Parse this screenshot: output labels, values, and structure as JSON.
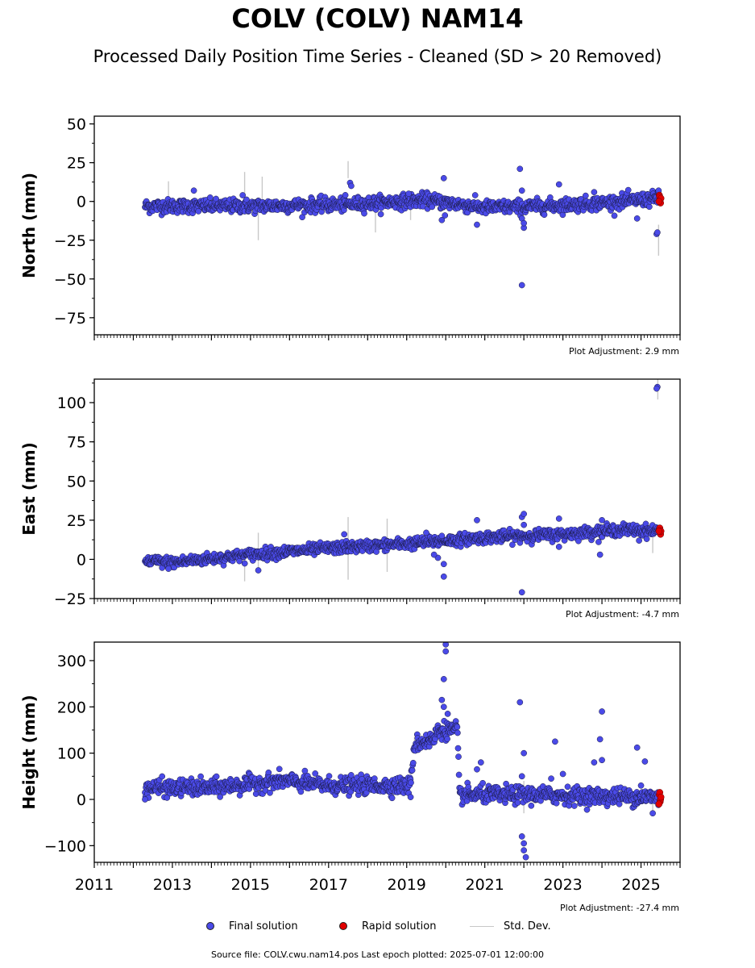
{
  "title": "COLV (COLV) NAM14",
  "subtitle": "Processed Daily Position Time Series - Cleaned (SD > 20 Removed)",
  "footer": "Source file: COLV.cwu.nam14.pos  Last epoch plotted: 2025-07-01 12:00:00",
  "legend": {
    "final": "Final solution",
    "rapid": "Rapid solution",
    "std": "Std. Dev."
  },
  "colors": {
    "final": "#4a4ae8",
    "rapid": "#e00000",
    "std": "#c8c8c8",
    "marker_edge": "#1a1a40"
  },
  "chart_data": [
    {
      "type": "scatter",
      "ylabel": "North (mm)",
      "adjustment": "Plot Adjustment: 2.9 mm",
      "xlim": [
        2011.0,
        2026.0
      ],
      "ylim": [
        -86,
        55
      ],
      "yticks": [
        50,
        25,
        0,
        -25,
        -50,
        -75
      ],
      "ytick_labels": [
        "50",
        "25",
        "0",
        "−25",
        "−50",
        "−75"
      ],
      "show_x_labels": false,
      "trend": [
        [
          2012.3,
          -3
        ],
        [
          2013.5,
          -3
        ],
        [
          2015.0,
          -3
        ],
        [
          2017.5,
          -2
        ],
        [
          2019.5,
          1
        ],
        [
          2021.0,
          -4
        ],
        [
          2022.5,
          -3
        ],
        [
          2024.0,
          -1
        ],
        [
          2025.45,
          2
        ]
      ],
      "noise": 2.2,
      "outliers": [
        [
          2013.55,
          7
        ],
        [
          2014.8,
          4
        ],
        [
          2017.55,
          12
        ],
        [
          2017.58,
          10
        ],
        [
          2019.05,
          5
        ],
        [
          2019.95,
          15
        ],
        [
          2019.9,
          -12
        ],
        [
          2019.98,
          -9
        ],
        [
          2020.8,
          -15
        ],
        [
          2021.9,
          21
        ],
        [
          2021.95,
          7
        ],
        [
          2021.95,
          -11
        ],
        [
          2022.0,
          -17
        ],
        [
          2022.0,
          -14
        ],
        [
          2021.95,
          -54
        ],
        [
          2022.9,
          11
        ],
        [
          2023.8,
          6
        ],
        [
          2024.9,
          -11
        ],
        [
          2025.4,
          -21
        ],
        [
          2025.42,
          -20
        ],
        [
          2025.45,
          7
        ]
      ],
      "errorbars": [
        [
          2012.9,
          -8,
          13
        ],
        [
          2014.85,
          1,
          19
        ],
        [
          2015.2,
          -25,
          -3
        ],
        [
          2015.3,
          0,
          16
        ],
        [
          2017.5,
          15,
          26
        ],
        [
          2018.2,
          -20,
          -5
        ],
        [
          2019.1,
          -12,
          0
        ],
        [
          2025.45,
          -35,
          -15
        ]
      ],
      "rapid": [
        [
          2025.47,
          4
        ],
        [
          2025.49,
          1
        ],
        [
          2025.5,
          -1
        ],
        [
          2025.48,
          3
        ],
        [
          2025.51,
          2
        ],
        [
          2025.46,
          0
        ]
      ]
    },
    {
      "type": "scatter",
      "ylabel": "East (mm)",
      "adjustment": "Plot Adjustment: -4.7 mm",
      "xlim": [
        2011.0,
        2026.0
      ],
      "ylim": [
        -25,
        115
      ],
      "yticks": [
        100,
        75,
        50,
        25,
        0,
        -25
      ],
      "ytick_labels": [
        "100",
        "75",
        "50",
        "25",
        "0",
        "−25"
      ],
      "show_x_labels": false,
      "trend": [
        [
          2012.3,
          -1
        ],
        [
          2013.0,
          -2
        ],
        [
          2015.0,
          3
        ],
        [
          2017.0,
          7
        ],
        [
          2019.0,
          10
        ],
        [
          2021.0,
          14
        ],
        [
          2023.0,
          16
        ],
        [
          2024.5,
          19
        ],
        [
          2025.45,
          18
        ]
      ],
      "noise": 1.8,
      "outliers": [
        [
          2012.9,
          -6
        ],
        [
          2015.2,
          -7
        ],
        [
          2017.4,
          16
        ],
        [
          2019.5,
          17
        ],
        [
          2019.9,
          15
        ],
        [
          2019.95,
          -3
        ],
        [
          2019.95,
          -11
        ],
        [
          2019.8,
          1
        ],
        [
          2019.7,
          3
        ],
        [
          2020.8,
          25
        ],
        [
          2021.95,
          27
        ],
        [
          2022.0,
          29
        ],
        [
          2022.0,
          22
        ],
        [
          2021.95,
          -21
        ],
        [
          2022.9,
          26
        ],
        [
          2022.9,
          8
        ],
        [
          2023.95,
          3
        ],
        [
          2024.0,
          25
        ],
        [
          2024.95,
          12
        ],
        [
          2025.42,
          110
        ],
        [
          2025.4,
          109
        ]
      ],
      "errorbars": [
        [
          2014.85,
          -14,
          6
        ],
        [
          2015.2,
          -5,
          17
        ],
        [
          2017.5,
          -13,
          27
        ],
        [
          2018.5,
          -8,
          26
        ],
        [
          2025.43,
          102,
          115
        ],
        [
          2025.3,
          4,
          16
        ]
      ],
      "rapid": [
        [
          2025.47,
          19
        ],
        [
          2025.49,
          17
        ],
        [
          2025.5,
          16
        ],
        [
          2025.48,
          20
        ],
        [
          2025.51,
          18
        ],
        [
          2025.46,
          18
        ]
      ]
    },
    {
      "type": "scatter",
      "ylabel": "Height (mm)",
      "adjustment": "Plot Adjustment: -27.4 mm",
      "xlim": [
        2011.0,
        2026.0
      ],
      "ylim": [
        -136,
        340
      ],
      "yticks": [
        300,
        200,
        100,
        0,
        -100
      ],
      "ytick_labels": [
        "300",
        "200",
        "100",
        "0",
        "−100"
      ],
      "show_x_labels": true,
      "xticks": [
        2011,
        2013,
        2015,
        2017,
        2019,
        2021,
        2023,
        2025
      ],
      "xtick_labels": [
        "2011",
        "2013",
        "2015",
        "2017",
        "2019",
        "2021",
        "2023",
        "2025"
      ],
      "trend": [
        [
          2012.3,
          25
        ],
        [
          2014.0,
          25
        ],
        [
          2015.8,
          40
        ],
        [
          2017.0,
          30
        ],
        [
          2019.1,
          30
        ],
        [
          2019.2,
          120
        ],
        [
          2019.7,
          130
        ],
        [
          2019.8,
          150
        ],
        [
          2020.3,
          150
        ],
        [
          2020.35,
          10
        ],
        [
          2022.0,
          10
        ],
        [
          2025.45,
          5
        ]
      ],
      "noise": 9,
      "outliers": [
        [
          2012.3,
          0
        ],
        [
          2019.1,
          5
        ],
        [
          2019.9,
          215
        ],
        [
          2019.95,
          260
        ],
        [
          2020.0,
          320
        ],
        [
          2020.0,
          335
        ],
        [
          2019.95,
          200
        ],
        [
          2020.05,
          185
        ],
        [
          2020.8,
          65
        ],
        [
          2020.9,
          80
        ],
        [
          2021.9,
          210
        ],
        [
          2021.95,
          50
        ],
        [
          2021.95,
          -80
        ],
        [
          2022.0,
          -95
        ],
        [
          2022.0,
          -110
        ],
        [
          2022.05,
          -125
        ],
        [
          2022.0,
          100
        ],
        [
          2022.7,
          45
        ],
        [
          2022.8,
          125
        ],
        [
          2023.0,
          55
        ],
        [
          2023.8,
          80
        ],
        [
          2023.95,
          130
        ],
        [
          2024.0,
          190
        ],
        [
          2024.0,
          85
        ],
        [
          2024.9,
          112
        ],
        [
          2025.0,
          30
        ],
        [
          2025.1,
          82
        ],
        [
          2025.3,
          -30
        ]
      ],
      "errorbars": [
        [
          2019.2,
          105,
          135
        ],
        [
          2022.0,
          -30,
          40
        ],
        [
          2025.3,
          -25,
          20
        ]
      ],
      "rapid": [
        [
          2025.47,
          10
        ],
        [
          2025.49,
          -5
        ],
        [
          2025.5,
          0
        ],
        [
          2025.48,
          15
        ],
        [
          2025.51,
          5
        ],
        [
          2025.46,
          -10
        ]
      ]
    }
  ]
}
